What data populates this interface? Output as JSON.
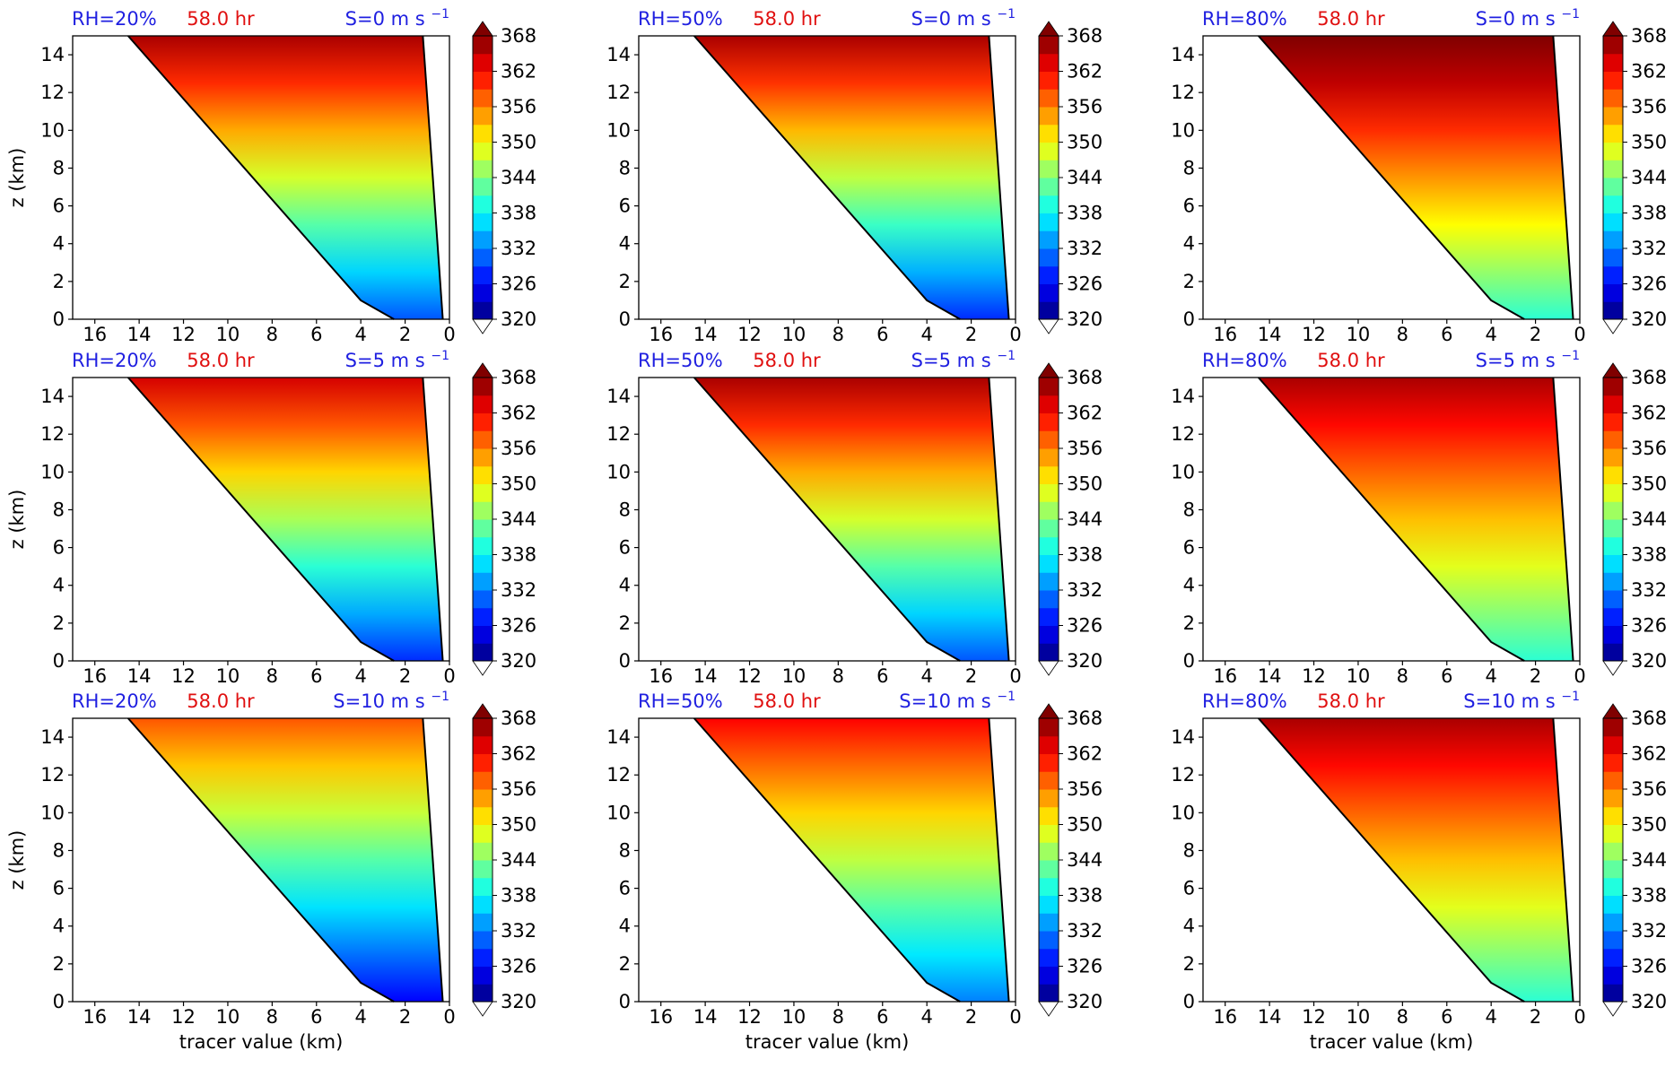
{
  "figure": {
    "xlabel": "tracer value (km)",
    "ylabel": "z (km)",
    "colors": {
      "rh": "#1f1fe0",
      "time": "#e01010",
      "shear": "#1f1fe0",
      "contour": "#000000"
    }
  },
  "colorbar": {
    "ticks": [
      "368",
      "362",
      "356",
      "350",
      "344",
      "338",
      "332",
      "326",
      "320"
    ],
    "min": 320,
    "max": 368,
    "extend": "both"
  },
  "chart_data": [
    {
      "type": "heatmap",
      "rh_label": "RH=20%",
      "time_label": "58.0 hr",
      "shear_label": "S=0 m s",
      "shear_exp": "−1",
      "x_ticks": [
        "16",
        "14",
        "12",
        "10",
        "8",
        "6",
        "4",
        "2",
        "0"
      ],
      "y_ticks": [
        "0",
        "2",
        "4",
        "6",
        "8",
        "10",
        "12",
        "14"
      ],
      "xlim": [
        17,
        0
      ],
      "ylim": [
        0,
        15
      ],
      "theta_range": [
        330,
        366
      ]
    },
    {
      "type": "heatmap",
      "rh_label": "RH=50%",
      "time_label": "58.0 hr",
      "shear_label": "S=0 m s",
      "shear_exp": "−1",
      "x_ticks": [
        "16",
        "14",
        "12",
        "10",
        "8",
        "6",
        "4",
        "2",
        "0"
      ],
      "y_ticks": [
        "0",
        "2",
        "4",
        "6",
        "8",
        "10",
        "12",
        "14"
      ],
      "xlim": [
        17,
        0
      ],
      "ylim": [
        0,
        15
      ],
      "theta_range": [
        328,
        366
      ]
    },
    {
      "type": "heatmap",
      "rh_label": "RH=80%",
      "time_label": "58.0 hr",
      "shear_label": "S=0 m s",
      "shear_exp": "−1",
      "x_ticks": [
        "16",
        "14",
        "12",
        "10",
        "8",
        "6",
        "4",
        "2",
        "0"
      ],
      "y_ticks": [
        "0",
        "2",
        "4",
        "6",
        "8",
        "10",
        "12",
        "14"
      ],
      "xlim": [
        17,
        0
      ],
      "ylim": [
        0,
        15
      ],
      "theta_range": [
        340,
        370
      ]
    },
    {
      "type": "heatmap",
      "rh_label": "RH=20%",
      "time_label": "58.0 hr",
      "shear_label": "S=5 m s",
      "shear_exp": "−1",
      "x_ticks": [
        "16",
        "14",
        "12",
        "10",
        "8",
        "6",
        "4",
        "2",
        "0"
      ],
      "y_ticks": [
        "0",
        "2",
        "4",
        "6",
        "8",
        "10",
        "12",
        "14"
      ],
      "xlim": [
        17,
        0
      ],
      "ylim": [
        0,
        15
      ],
      "theta_range": [
        328,
        364
      ]
    },
    {
      "type": "heatmap",
      "rh_label": "RH=50%",
      "time_label": "58.0 hr",
      "shear_label": "S=5 m s",
      "shear_exp": "−1",
      "x_ticks": [
        "16",
        "14",
        "12",
        "10",
        "8",
        "6",
        "4",
        "2",
        "0"
      ],
      "y_ticks": [
        "0",
        "2",
        "4",
        "6",
        "8",
        "10",
        "12",
        "14"
      ],
      "xlim": [
        17,
        0
      ],
      "ylim": [
        0,
        15
      ],
      "theta_range": [
        330,
        366
      ]
    },
    {
      "type": "heatmap",
      "rh_label": "RH=80%",
      "time_label": "58.0 hr",
      "shear_label": "S=5 m s",
      "shear_exp": "−1",
      "x_ticks": [
        "16",
        "14",
        "12",
        "10",
        "8",
        "6",
        "4",
        "2",
        "0"
      ],
      "y_ticks": [
        "0",
        "2",
        "4",
        "6",
        "8",
        "10",
        "12",
        "14"
      ],
      "xlim": [
        17,
        0
      ],
      "ylim": [
        0,
        15
      ],
      "theta_range": [
        340,
        366
      ]
    },
    {
      "type": "heatmap",
      "rh_label": "RH=20%",
      "time_label": "58.0 hr",
      "shear_label": "S=10 m s",
      "shear_exp": "−1",
      "x_ticks": [
        "16",
        "14",
        "12",
        "10",
        "8",
        "6",
        "4",
        "2",
        "0"
      ],
      "y_ticks": [
        "0",
        "2",
        "4",
        "6",
        "8",
        "10",
        "12",
        "14"
      ],
      "xlim": [
        17,
        0
      ],
      "ylim": [
        0,
        15
      ],
      "theta_range": [
        326,
        358
      ]
    },
    {
      "type": "heatmap",
      "rh_label": "RH=50%",
      "time_label": "58.0 hr",
      "shear_label": "S=10 m s",
      "shear_exp": "−1",
      "x_ticks": [
        "16",
        "14",
        "12",
        "10",
        "8",
        "6",
        "4",
        "2",
        "0"
      ],
      "y_ticks": [
        "0",
        "2",
        "4",
        "6",
        "8",
        "10",
        "12",
        "14"
      ],
      "xlim": [
        17,
        0
      ],
      "ylim": [
        0,
        15
      ],
      "theta_range": [
        332,
        362
      ]
    },
    {
      "type": "heatmap",
      "rh_label": "RH=80%",
      "time_label": "58.0 hr",
      "shear_label": "S=10 m s",
      "shear_exp": "−1",
      "x_ticks": [
        "16",
        "14",
        "12",
        "10",
        "8",
        "6",
        "4",
        "2",
        "0"
      ],
      "y_ticks": [
        "0",
        "2",
        "4",
        "6",
        "8",
        "10",
        "12",
        "14"
      ],
      "xlim": [
        17,
        0
      ],
      "ylim": [
        0,
        15
      ],
      "theta_range": [
        340,
        366
      ]
    }
  ]
}
